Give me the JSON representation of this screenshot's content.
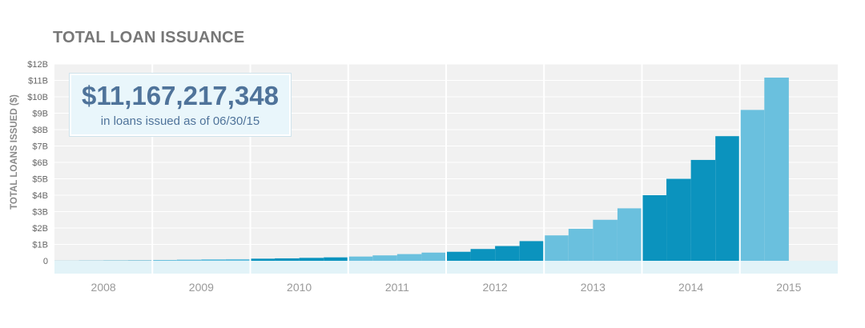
{
  "page": {
    "title": "TOTAL LOAN ISSUANCE"
  },
  "callout": {
    "amount": "$11,167,217,348",
    "caption": "in loans issued as of 06/30/15"
  },
  "colors": {
    "dark": "#0b93be",
    "light": "#6ac0de",
    "baseline": "#e2f3f8",
    "plot_bg": "#f1f1f1",
    "grid": "#ffffff",
    "tick_text": "#666666",
    "year_text": "#999999"
  },
  "chart_data": {
    "type": "bar",
    "title": "TOTAL LOAN ISSUANCE",
    "ylabel": "TOTAL LOANS ISSUED ($)",
    "xlabel": "",
    "ylim": [
      0,
      12
    ],
    "y_ticks": [
      "0",
      "$1B",
      "$2B",
      "$3B",
      "$4B",
      "$5B",
      "$6B",
      "$7B",
      "$8B",
      "$9B",
      "$10B",
      "$11B",
      "$12B"
    ],
    "grid": true,
    "years": [
      {
        "year": "2008",
        "shade": "dark",
        "values": [
          0.005,
          0.01,
          0.015,
          0.02
        ]
      },
      {
        "year": "2009",
        "shade": "light",
        "values": [
          0.05,
          0.07,
          0.09,
          0.1
        ]
      },
      {
        "year": "2010",
        "shade": "dark",
        "values": [
          0.13,
          0.15,
          0.18,
          0.21
        ]
      },
      {
        "year": "2011",
        "shade": "light",
        "values": [
          0.26,
          0.33,
          0.41,
          0.5
        ]
      },
      {
        "year": "2012",
        "shade": "dark",
        "values": [
          0.55,
          0.72,
          0.9,
          1.2
        ]
      },
      {
        "year": "2013",
        "shade": "light",
        "values": [
          1.55,
          1.95,
          2.5,
          3.2
        ]
      },
      {
        "year": "2014",
        "shade": "dark",
        "values": [
          4.0,
          5.0,
          6.15,
          7.6
        ]
      },
      {
        "year": "2015",
        "shade": "light",
        "values": [
          9.2,
          11.17
        ]
      }
    ]
  }
}
